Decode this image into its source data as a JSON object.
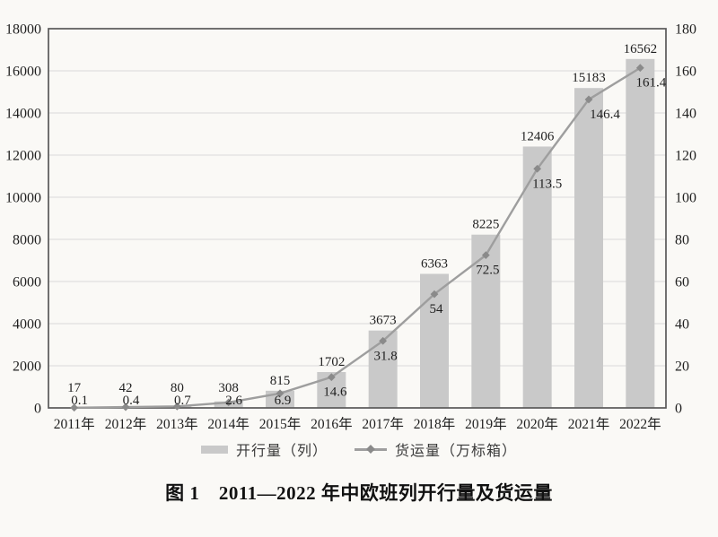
{
  "caption": "图 1　2011—2022 年中欧班列开行量及货运量",
  "legend": {
    "bar_label": "开行量（列）",
    "line_label": "货运量（万标箱）"
  },
  "chart_data": {
    "type": "bar+line",
    "categories": [
      "2011年",
      "2012年",
      "2013年",
      "2014年",
      "2015年",
      "2016年",
      "2017年",
      "2018年",
      "2019年",
      "2020年",
      "2021年",
      "2022年"
    ],
    "series": [
      {
        "name": "开行量（列）",
        "type": "bar",
        "axis": "left",
        "values": [
          17,
          42,
          80,
          308,
          815,
          1702,
          3673,
          6363,
          8225,
          12406,
          15183,
          16562
        ]
      },
      {
        "name": "货运量（万标箱）",
        "type": "line",
        "axis": "right",
        "values": [
          0.1,
          0.4,
          0.7,
          2.6,
          6.9,
          14.6,
          31.8,
          54,
          72.5,
          113.5,
          146.4,
          161.4
        ]
      }
    ],
    "left_axis": {
      "min": 0,
      "max": 18000,
      "step": 2000
    },
    "right_axis": {
      "min": 0,
      "max": 180,
      "step": 20
    },
    "grid": true,
    "legend_position": "bottom",
    "title": "图 1　2011—2022 年中欧班列开行量及货运量",
    "colors": {
      "background": "#faf9f6",
      "bar": "#c9c9c9",
      "line": "#9e9e9e",
      "marker": "#8a8a8a",
      "frame": "#595959",
      "grid": "#d9d9d9",
      "text": "#1f1f1f"
    }
  }
}
